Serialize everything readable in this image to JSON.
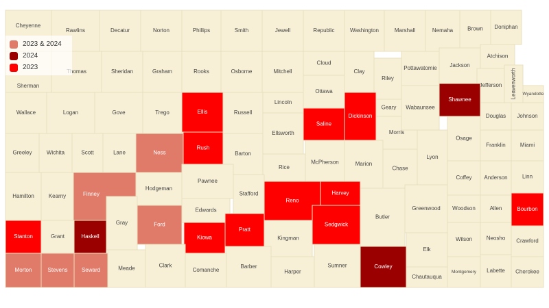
{
  "colors": {
    "base": "#f7f0d6",
    "border": "#e8dfbf",
    "2023 & 2024": "#e07b6a",
    "2024": "#9b0000",
    "2023": "#ff0000"
  },
  "legend": {
    "items": [
      {
        "label": "2023 & 2024",
        "key": "2023 & 2024"
      },
      {
        "label": "2024",
        "key": "2024"
      },
      {
        "label": "2023",
        "key": "2023"
      }
    ]
  },
  "counties": [
    {
      "name": "Cheyenne"
    },
    {
      "name": "Rawlins"
    },
    {
      "name": "Decatur"
    },
    {
      "name": "Norton"
    },
    {
      "name": "Phillips"
    },
    {
      "name": "Smith"
    },
    {
      "name": "Jewell"
    },
    {
      "name": "Republic"
    },
    {
      "name": "Washington"
    },
    {
      "name": "Marshall"
    },
    {
      "name": "Nemaha"
    },
    {
      "name": "Brown"
    },
    {
      "name": "Doniphan"
    },
    {
      "name": "Sherman"
    },
    {
      "name": "Thomas"
    },
    {
      "name": "Sheridan"
    },
    {
      "name": "Graham"
    },
    {
      "name": "Rooks"
    },
    {
      "name": "Osborne"
    },
    {
      "name": "Mitchell"
    },
    {
      "name": "Cloud"
    },
    {
      "name": "Ottawa"
    },
    {
      "name": "Clay"
    },
    {
      "name": "Riley"
    },
    {
      "name": "Pottawatomie"
    },
    {
      "name": "Jackson"
    },
    {
      "name": "Atchison"
    },
    {
      "name": "Jefferson"
    },
    {
      "name": "Leavenworth"
    },
    {
      "name": "Wyandotte"
    },
    {
      "name": "Wallace"
    },
    {
      "name": "Logan"
    },
    {
      "name": "Gove"
    },
    {
      "name": "Trego"
    },
    {
      "name": "Ellis",
      "status": "2023"
    },
    {
      "name": "Russell"
    },
    {
      "name": "Lincoln"
    },
    {
      "name": "Ellsworth"
    },
    {
      "name": "Saline",
      "status": "2023"
    },
    {
      "name": "Dickinson",
      "status": "2023"
    },
    {
      "name": "Geary"
    },
    {
      "name": "Morris"
    },
    {
      "name": "Wabaunsee"
    },
    {
      "name": "Shawnee",
      "status": "2024"
    },
    {
      "name": "Douglas"
    },
    {
      "name": "Johnson"
    },
    {
      "name": "Greeley"
    },
    {
      "name": "Wichita"
    },
    {
      "name": "Scott"
    },
    {
      "name": "Lane"
    },
    {
      "name": "Ness",
      "status": "2023 & 2024"
    },
    {
      "name": "Rush",
      "status": "2023"
    },
    {
      "name": "Barton"
    },
    {
      "name": "Rice"
    },
    {
      "name": "McPherson"
    },
    {
      "name": "Marion"
    },
    {
      "name": "Chase"
    },
    {
      "name": "Lyon"
    },
    {
      "name": "Osage"
    },
    {
      "name": "Franklin"
    },
    {
      "name": "Miami"
    },
    {
      "name": "Hamilton"
    },
    {
      "name": "Kearny"
    },
    {
      "name": "Finney",
      "status": "2023 & 2024"
    },
    {
      "name": "Hodgeman"
    },
    {
      "name": "Pawnee"
    },
    {
      "name": "Edwards"
    },
    {
      "name": "Stafford"
    },
    {
      "name": "Reno",
      "status": "2023"
    },
    {
      "name": "Harvey",
      "status": "2023"
    },
    {
      "name": "Sedgwick",
      "status": "2023"
    },
    {
      "name": "Butler"
    },
    {
      "name": "Greenwood"
    },
    {
      "name": "Coffey"
    },
    {
      "name": "Woodson"
    },
    {
      "name": "Anderson"
    },
    {
      "name": "Allen"
    },
    {
      "name": "Linn"
    },
    {
      "name": "Bourbon",
      "status": "2023"
    },
    {
      "name": "Stanton",
      "status": "2023"
    },
    {
      "name": "Grant"
    },
    {
      "name": "Haskell",
      "status": "2024"
    },
    {
      "name": "Gray"
    },
    {
      "name": "Ford",
      "status": "2023 & 2024"
    },
    {
      "name": "Kiowa",
      "status": "2023"
    },
    {
      "name": "Pratt",
      "status": "2023"
    },
    {
      "name": "Kingman"
    },
    {
      "name": "Elk"
    },
    {
      "name": "Wilson"
    },
    {
      "name": "Neosho"
    },
    {
      "name": "Crawford"
    },
    {
      "name": "Morton",
      "status": "2023 & 2024"
    },
    {
      "name": "Stevens",
      "status": "2023 & 2024"
    },
    {
      "name": "Seward",
      "status": "2023 & 2024"
    },
    {
      "name": "Meade"
    },
    {
      "name": "Clark"
    },
    {
      "name": "Comanche"
    },
    {
      "name": "Barber"
    },
    {
      "name": "Harper"
    },
    {
      "name": "Sumner"
    },
    {
      "name": "Cowley",
      "status": "2024"
    },
    {
      "name": "Chautauqua"
    },
    {
      "name": "Montgomery"
    },
    {
      "name": "Labette"
    },
    {
      "name": "Cherokee"
    }
  ]
}
